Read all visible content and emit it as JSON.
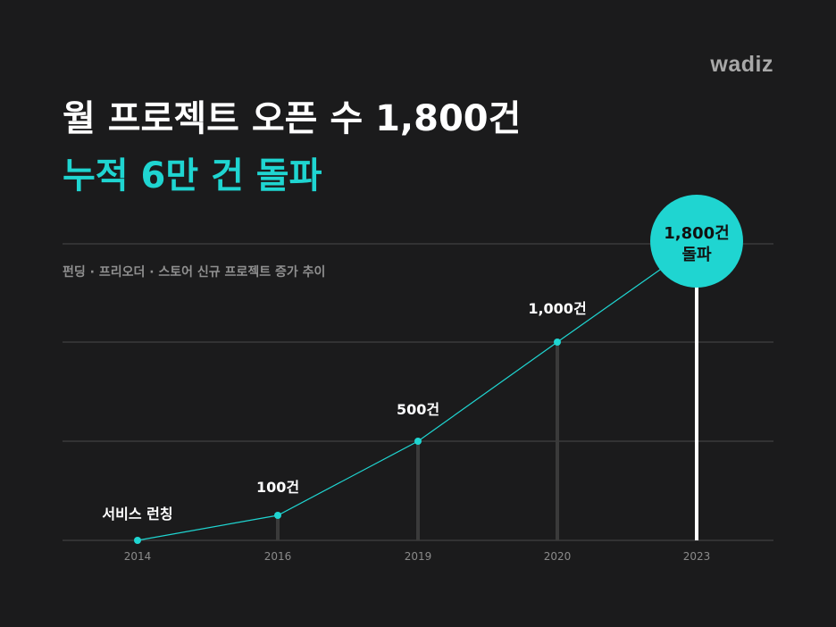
{
  "brand": {
    "logo_text": "wadiz"
  },
  "header": {
    "title": "월 프로젝트 오픈 수 1,800건",
    "highlight": "누적 6만 건 돌파",
    "subtitle": "펀딩 · 프리오더 · 스토어 신규 프로젝트 증가 추이"
  },
  "colors": {
    "accent": "#1fd5d1",
    "background": "#1b1b1c",
    "grid": "#4a4a4a",
    "stem": "#3a3a3a",
    "final_stem": "#ffffff"
  },
  "chart_data": {
    "type": "line",
    "title": "월 프로젝트 오픈 수 1,800건",
    "xlabel": "",
    "ylabel": "",
    "x": [
      "2014",
      "2016",
      "2019",
      "2020",
      "2023"
    ],
    "series": [
      {
        "values": [
          0,
          100,
          500,
          1000,
          1800
        ]
      }
    ],
    "data_labels": [
      "서비스 런칭",
      "100건",
      "500건",
      "1,000건",
      "1,800건 돌파"
    ],
    "highlight_label_lines": [
      "1,800건",
      "돌파"
    ],
    "ylim": [
      0,
      1800
    ],
    "grid": true,
    "legend": "none"
  }
}
